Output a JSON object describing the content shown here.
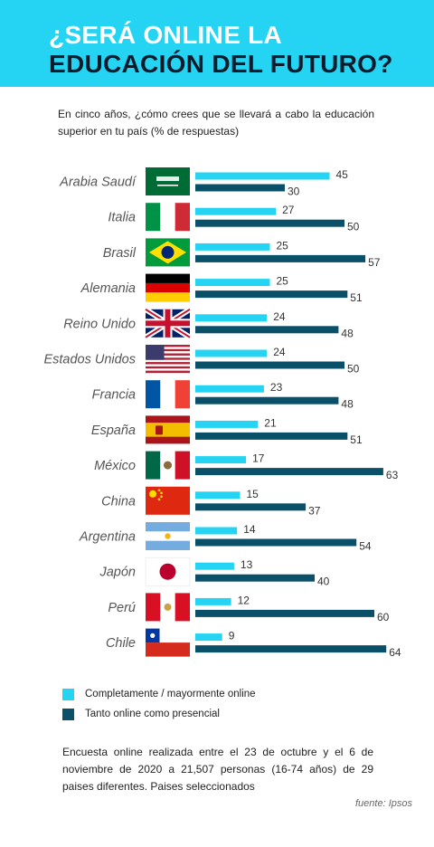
{
  "header": {
    "title_line1": "¿SERÁ ONLINE LA",
    "title_line2": "EDUCACIÓN DEL FUTURO?",
    "background": "#25d4f2"
  },
  "question": "En cinco años, ¿cómo crees que se llevará a cabo la educación superior en tu país (% de respuestas)",
  "chart_data": {
    "type": "bar",
    "orientation": "horizontal",
    "categories": [
      "Arabia Saudí",
      "Italia",
      "Brasil",
      "Alemania",
      "Reino Unido",
      "Estados Unidos",
      "Francia",
      "España",
      "México",
      "China",
      "Argentina",
      "Japón",
      "Perú",
      "Chile"
    ],
    "series": [
      {
        "name": "Completamente / mayormente online",
        "color": "#25d4f2",
        "values": [
          45,
          27,
          25,
          25,
          24,
          24,
          23,
          21,
          17,
          15,
          14,
          13,
          12,
          9
        ]
      },
      {
        "name": "Tanto online como presencial",
        "color": "#0a5069",
        "values": [
          30,
          50,
          57,
          51,
          48,
          50,
          48,
          51,
          63,
          37,
          54,
          40,
          60,
          64
        ]
      }
    ],
    "flags": [
      "saudi-arabia",
      "italy",
      "brazil",
      "germany",
      "united-kingdom",
      "united-states",
      "france",
      "spain",
      "mexico",
      "china",
      "argentina",
      "japan",
      "peru",
      "chile"
    ],
    "legend_position": "bottom-left",
    "grid": false
  },
  "legend": [
    {
      "label": "Completamente / mayormente online",
      "color": "#25d4f2"
    },
    {
      "label": "Tanto online como presencial",
      "color": "#0a5069"
    }
  ],
  "note": "Encuesta online realizada entre el 23 de octubre y el 6 de noviembre de 2020 a 21,507 personas (16-74 años) de 29 paises diferentes. Paises seleccionados",
  "source": "fuente: Ipsos"
}
